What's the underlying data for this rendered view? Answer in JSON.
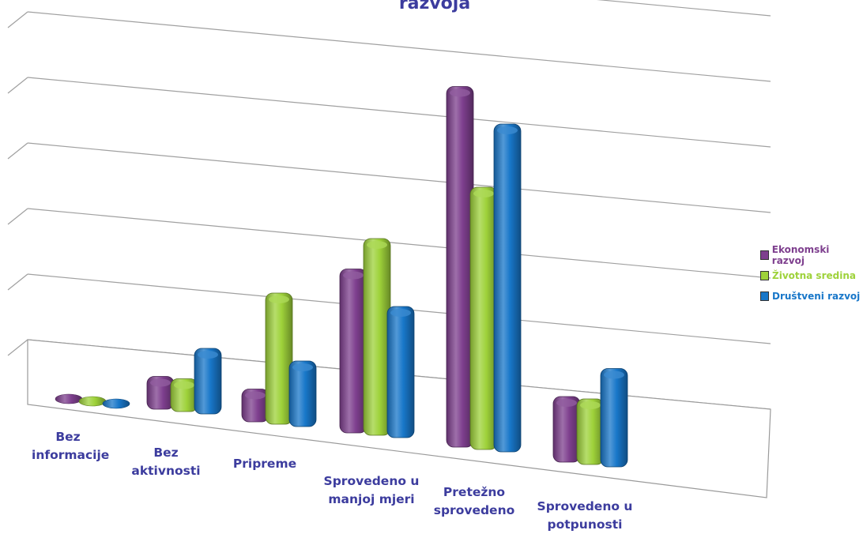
{
  "chart_data": {
    "type": "bar",
    "title": "razvoja",
    "categories": [
      "Bez\ninformacije",
      "Bez aktivnosti",
      "Pripreme",
      "Sprovedeno u\nmanjoj mjeri",
      "Pretežno\nsprovedeno",
      "Sprovedeno u\npotpunosti"
    ],
    "series": [
      {
        "name": "Ekonomski razvoj",
        "color": "#7e3f8e",
        "values": [
          0,
          1,
          1,
          5,
          11,
          2
        ]
      },
      {
        "name": "Životna sredina",
        "color": "#9ed23a",
        "values": [
          0,
          1,
          4,
          6,
          8,
          2
        ]
      },
      {
        "name": "Društveni razvoj",
        "color": "#1877c9",
        "values": [
          0,
          2,
          2,
          4,
          10,
          3
        ]
      }
    ],
    "ylim": [
      0,
      12
    ],
    "grid": true,
    "legend_position": "right"
  }
}
